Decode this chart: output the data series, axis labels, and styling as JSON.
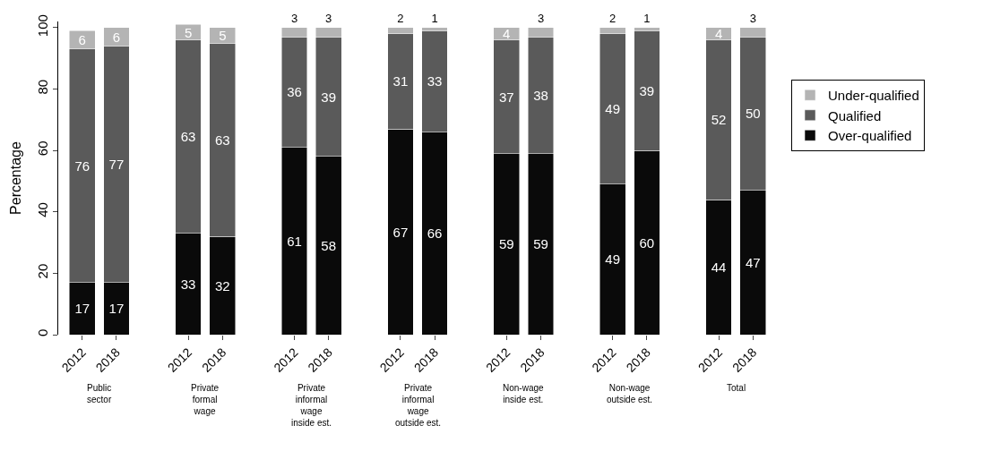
{
  "chart_data": {
    "type": "bar",
    "stacked": true,
    "ylabel": "Percentage",
    "categories": [
      "2012",
      "2018",
      "2012",
      "2018",
      "2012",
      "2018",
      "2012",
      "2018",
      "2012",
      "2018",
      "2012",
      "2018",
      "2012",
      "2018"
    ],
    "series": [
      {
        "name": "Over-qualified",
        "color": "#0a0a0a",
        "values": [
          17,
          17,
          33,
          32,
          61,
          58,
          67,
          66,
          59,
          59,
          49,
          60,
          44,
          47
        ]
      },
      {
        "name": "Qualified",
        "color": "#5a5a5a",
        "values": [
          76,
          77,
          63,
          63,
          36,
          39,
          31,
          33,
          37,
          38,
          49,
          39,
          52,
          50
        ]
      },
      {
        "name": "Under-qualified",
        "color": "#b4b4b4",
        "values": [
          6,
          6,
          5,
          5,
          3,
          3,
          2,
          1,
          4,
          3,
          2,
          1,
          4,
          3
        ]
      }
    ],
    "annotations": [
      "Public\nsector",
      "Private\nformal\nwage",
      "Private\ninformal\nwage\ninside est.",
      "Private\ninformal\nwage\noutside est.",
      "Non-wage\ninside est.",
      "Non-wage\noutside est.",
      "Total"
    ],
    "ylim": [
      0,
      102
    ],
    "yticks": [
      0,
      20,
      40,
      60,
      80,
      100
    ],
    "data_labels": true,
    "legend": "right",
    "grid": false
  }
}
